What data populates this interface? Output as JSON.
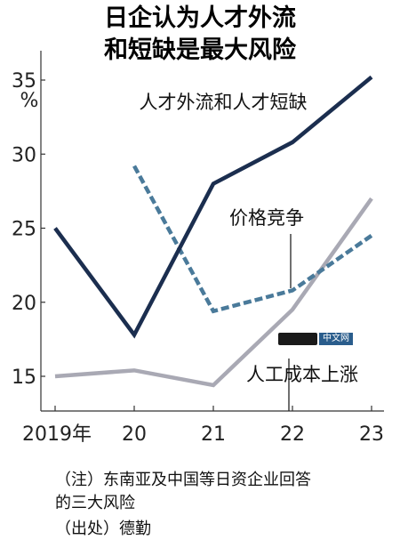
{
  "title": {
    "line1": "日企认为人才外流",
    "line2": "和短缺是最大风险"
  },
  "chart_data": {
    "type": "line",
    "x": [
      "2019年",
      "20",
      "21",
      "22",
      "23"
    ],
    "y_unit": "%",
    "ylim": [
      12.5,
      36.5
    ],
    "yticks": [
      15,
      20,
      25,
      30,
      35
    ],
    "grid": false,
    "series": [
      {
        "name": "人才外流和人才短缺",
        "color": "#1b2e4f",
        "style": "solid",
        "values": [
          25.0,
          17.8,
          28.0,
          30.8,
          35.2
        ]
      },
      {
        "name": "价格竞争",
        "color": "#4a7a9a",
        "style": "dashed",
        "values": [
          null,
          29.2,
          19.4,
          20.8,
          24.5
        ]
      },
      {
        "name": "人工成本上涨",
        "color": "#a9a9b4",
        "style": "solid",
        "values": [
          15.0,
          15.4,
          14.4,
          19.5,
          27.0
        ]
      }
    ]
  },
  "notes": {
    "line1": "（注）东南亚及中国等日资企业回答",
    "line2": "的三大风险",
    "source": "（出处）德勤"
  },
  "watermark": {
    "text": "中文网"
  }
}
